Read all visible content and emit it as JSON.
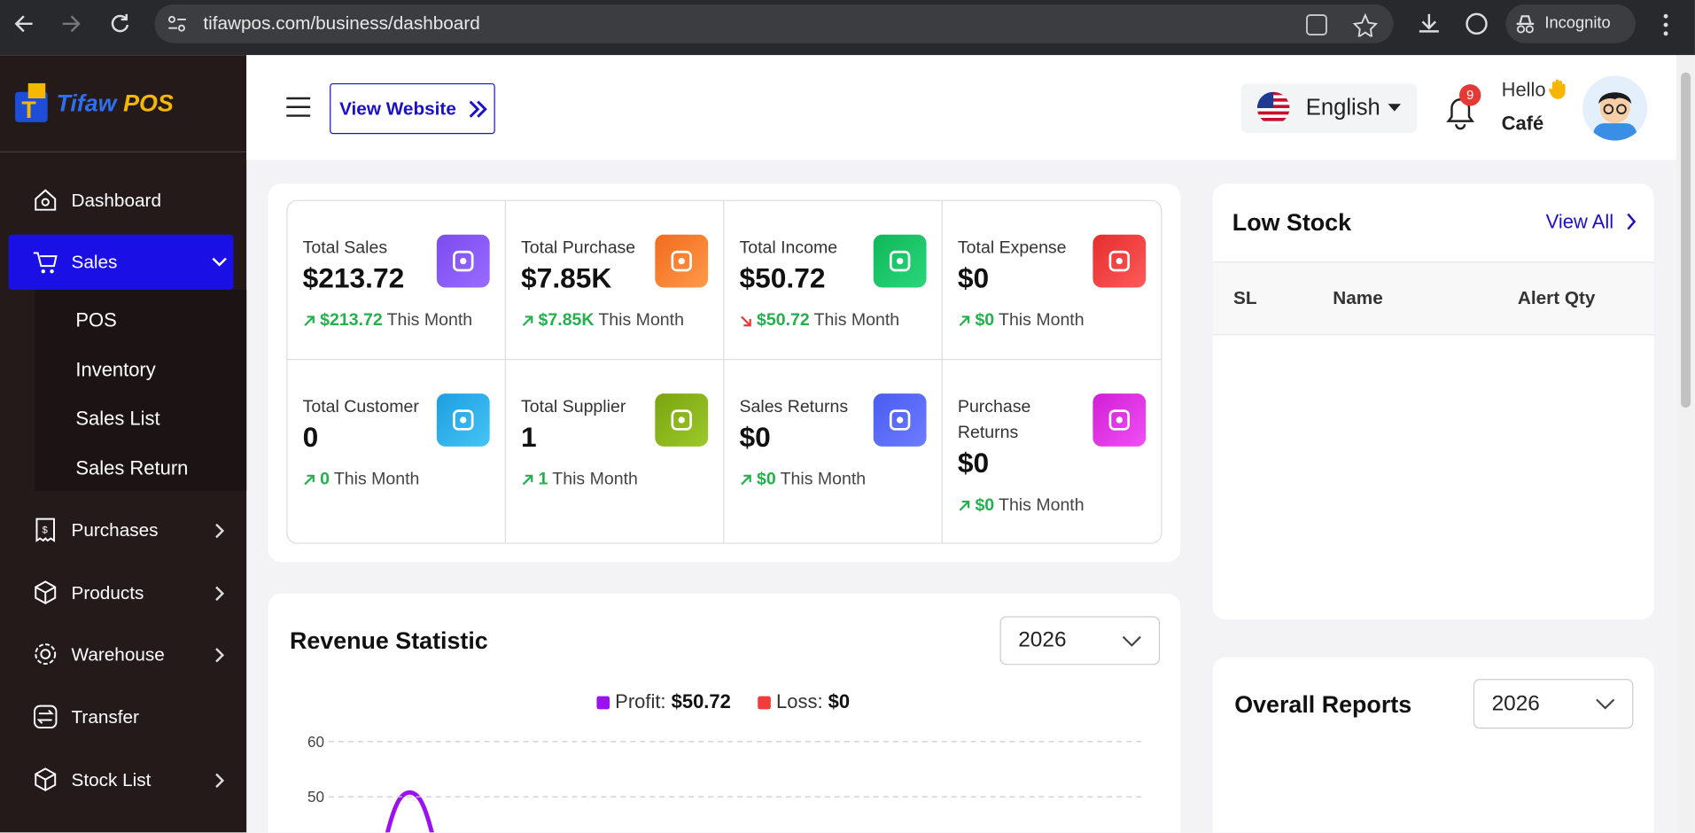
{
  "browser": {
    "url": "tifawpos.com/business/dashboard",
    "incognito": "Incognito"
  },
  "sidebar": {
    "logo": {
      "part1": "Tifaw",
      "part2": "POS"
    },
    "menu": {
      "dashboard": "Dashboard",
      "sales": "Sales",
      "sales_submenu": [
        "POS",
        "Inventory",
        "Sales List",
        "Sales Return"
      ],
      "purchases": "Purchases",
      "products": "Products",
      "warehouse": "Warehouse",
      "transfer": "Transfer",
      "stock_list": "Stock List"
    }
  },
  "header": {
    "view_website": "View Website",
    "language": "English",
    "notifications": "9",
    "greeting": "Hello",
    "user": "Café"
  },
  "stats": [
    {
      "label": "Total Sales",
      "value": "$213.72",
      "change": "$213.72",
      "period": "This Month",
      "trend": "up"
    },
    {
      "label": "Total Purchase",
      "value": "$7.85K",
      "change": "$7.85K",
      "period": "This Month",
      "trend": "up"
    },
    {
      "label": "Total Income",
      "value": "$50.72",
      "change": "$50.72",
      "period": "This Month",
      "trend": "down"
    },
    {
      "label": "Total Expense",
      "value": "$0",
      "change": "$0",
      "period": "This Month",
      "trend": "up"
    },
    {
      "label": "Total Customer",
      "value": "0",
      "change": "0",
      "period": "This Month",
      "trend": "up"
    },
    {
      "label": "Total Supplier",
      "value": "1",
      "change": "1",
      "period": "This Month",
      "trend": "up"
    },
    {
      "label": "Sales Returns",
      "value": "$0",
      "change": "$0",
      "period": "This Month",
      "trend": "up"
    },
    {
      "label": "Purchase Returns",
      "value": "$0",
      "change": "$0",
      "period": "This Month",
      "trend": "up"
    }
  ],
  "low_stock": {
    "title": "Low Stock",
    "view_all": "View All",
    "columns": [
      "SL",
      "Name",
      "Alert Qty"
    ]
  },
  "revenue": {
    "title": "Revenue Statistic",
    "year": "2026",
    "legend": [
      {
        "name": "Profit:",
        "value": "$50.72"
      },
      {
        "name": "Loss:",
        "value": "$0"
      }
    ],
    "yticks": [
      60,
      50
    ]
  },
  "overall": {
    "title": "Overall Reports",
    "year": "2026"
  }
}
